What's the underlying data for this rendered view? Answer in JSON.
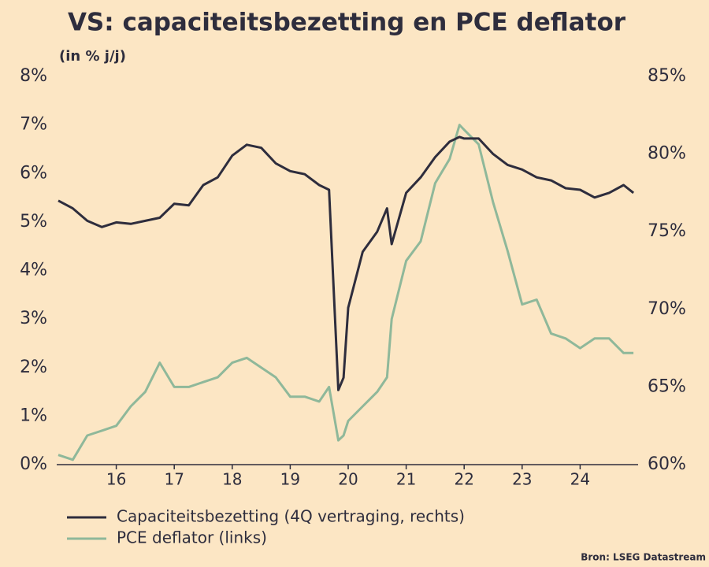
{
  "chart_data": {
    "type": "line",
    "title": "VS: capaciteitsbezetting en PCE deflator",
    "subtitle": "(in % j/j)",
    "source": "Bron: LSEG Datastream",
    "x": [
      15.0,
      15.25,
      15.5,
      15.75,
      16.0,
      16.25,
      16.5,
      16.75,
      17.0,
      17.25,
      17.5,
      17.75,
      18.0,
      18.25,
      18.5,
      18.75,
      19.0,
      19.25,
      19.5,
      19.67,
      19.83,
      19.92,
      20.0,
      20.25,
      20.5,
      20.67,
      20.75,
      21.0,
      21.25,
      21.5,
      21.75,
      21.92,
      22.0,
      22.25,
      22.5,
      22.75,
      23.0,
      23.25,
      23.5,
      23.75,
      24.0,
      24.25,
      24.5,
      24.75,
      24.92
    ],
    "xlim": [
      15,
      25
    ],
    "xticks": [
      16,
      17,
      18,
      19,
      20,
      21,
      22,
      23,
      24
    ],
    "ylim": [
      0,
      8
    ],
    "yticks": [
      {
        "value": 0,
        "label": "0%"
      },
      {
        "value": 1,
        "label": "1%"
      },
      {
        "value": 2,
        "label": "2%"
      },
      {
        "value": 3,
        "label": "3%"
      },
      {
        "value": 4,
        "label": "4%"
      },
      {
        "value": 5,
        "label": "5%"
      },
      {
        "value": 6,
        "label": "6%"
      },
      {
        "value": 7,
        "label": "7%"
      },
      {
        "value": 8,
        "label": "8%"
      }
    ],
    "y2lim": [
      60,
      85
    ],
    "y2ticks": [
      {
        "value": 60,
        "label": "60%"
      },
      {
        "value": 65,
        "label": "65%"
      },
      {
        "value": 70,
        "label": "70%"
      },
      {
        "value": 75,
        "label": "75%"
      },
      {
        "value": 80,
        "label": "80%"
      },
      {
        "value": 85,
        "label": "85%"
      }
    ],
    "series": [
      {
        "name": "Capaciteitsbezetting (4Q vertraging, rechts)",
        "color": "#2e2d3d",
        "axis": "y2",
        "values": [
          77.0,
          76.5,
          75.7,
          75.3,
          75.6,
          75.5,
          75.7,
          75.9,
          76.8,
          76.7,
          78.0,
          78.5,
          79.9,
          80.6,
          80.4,
          79.4,
          78.9,
          78.7,
          78.0,
          77.7,
          64.8,
          65.6,
          70.1,
          73.7,
          75.0,
          76.5,
          74.2,
          77.5,
          78.5,
          79.8,
          80.8,
          81.1,
          81.0,
          81.0,
          80.0,
          79.3,
          79.0,
          78.5,
          78.3,
          77.8,
          77.7,
          77.2,
          77.5,
          78.0,
          77.5
        ]
      },
      {
        "name": "PCE deflator (links)",
        "color": "#8fb89a",
        "values": [
          0.2,
          0.1,
          0.6,
          0.7,
          0.8,
          1.2,
          1.5,
          2.1,
          1.6,
          1.6,
          1.7,
          1.8,
          2.1,
          2.2,
          2.0,
          1.8,
          1.4,
          1.4,
          1.3,
          1.6,
          0.5,
          0.6,
          0.9,
          1.2,
          1.5,
          1.8,
          3.0,
          4.2,
          4.6,
          5.8,
          6.3,
          7.0,
          6.9,
          6.6,
          5.4,
          4.4,
          3.3,
          3.4,
          2.7,
          2.6,
          2.4,
          2.6,
          2.6,
          2.3,
          2.3
        ]
      }
    ]
  }
}
